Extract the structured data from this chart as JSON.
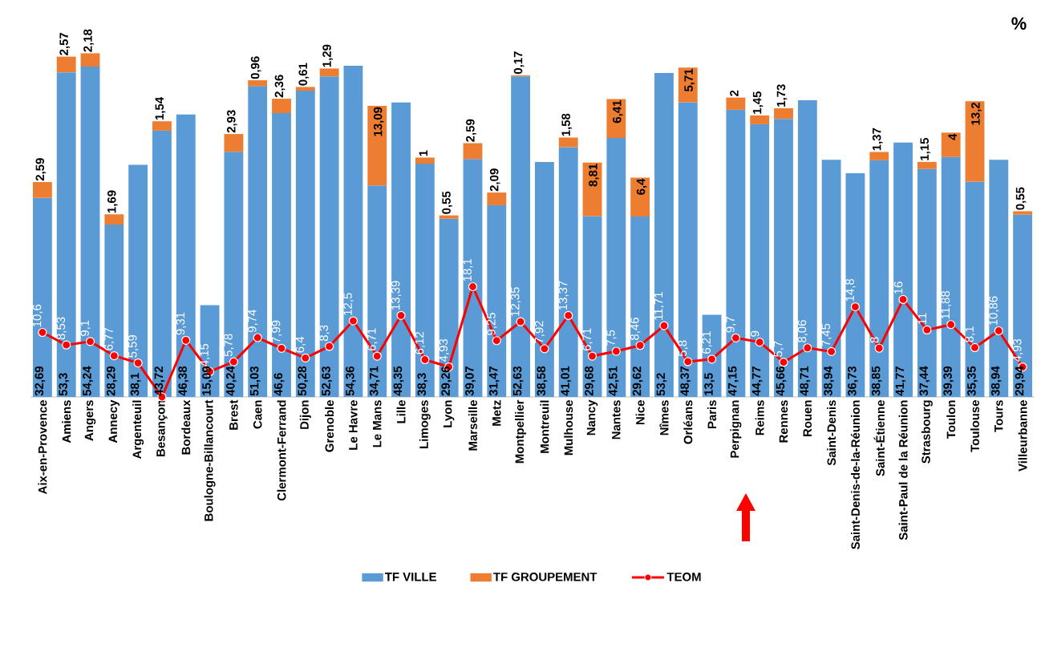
{
  "chart_data": {
    "type": "bar",
    "stacked": true,
    "tick_labels": "x",
    "legend": "bottom",
    "marker": "circle",
    "line_style": "solid",
    "annotations": [
      "%"
    ],
    "categories": [
      "Aix-en-Provence",
      "Amiens",
      "Angers",
      "Annecy",
      "Argenteuil",
      "Besançon",
      "Bordeaux",
      "Boulogne-Billancourt",
      "Brest",
      "Caen",
      "Clermont-Ferrand",
      "Dijon",
      "Grenoble",
      "Le Havre",
      "Le Mans",
      "Lille",
      "Limoges",
      "Lyon",
      "Marseille",
      "Metz",
      "Montpellier",
      "Montreuil",
      "Mulhouse",
      "Nancy",
      "Nantes",
      "Nice",
      "Nîmes",
      "Orléans",
      "Paris",
      "Perpignan",
      "Reims",
      "Rennes",
      "Rouen",
      "Saint-Denis",
      "Saint-Denis-de-la-Réunion",
      "Saint-Étienne",
      "Saint-Paul de la Réunion",
      "Strasbourg",
      "Toulon",
      "Toulouse",
      "Tours",
      "Villeurbanne"
    ],
    "series": [
      {
        "name": "TF VILLE",
        "color": "#5b9bd5",
        "values": [
          32.69,
          53.3,
          54.24,
          28.29,
          38.1,
          43.72,
          46.38,
          15.09,
          40.24,
          51.03,
          46.6,
          50.28,
          52.63,
          54.36,
          34.71,
          48.35,
          38.3,
          29.26,
          39.07,
          31.47,
          52.63,
          38.58,
          41.01,
          29.68,
          42.51,
          29.62,
          53.2,
          48.37,
          13.5,
          47.15,
          44.77,
          45.66,
          48.71,
          38.94,
          36.73,
          38.85,
          41.77,
          37.44,
          39.39,
          35.35,
          38.94,
          29.94
        ],
        "value_labels": [
          "32,69",
          "53,3",
          "54,24",
          "28,29",
          "38,1",
          "43,72",
          "46,38",
          "15,09",
          "40,24",
          "51,03",
          "46,6",
          "50,28",
          "52,63",
          "54,36",
          "34,71",
          "48,35",
          "38,3",
          "29,26",
          "39,07",
          "31,47",
          "52,63",
          "38,58",
          "41,01",
          "29,68",
          "42,51",
          "29,62",
          "53,2",
          "48,37",
          "13,5",
          "47,15",
          "44,77",
          "45,66",
          "48,71",
          "38,94",
          "36,73",
          "38,85",
          "41,77",
          "37,44",
          "39,39",
          "35,35",
          "38,94",
          "29,94"
        ]
      },
      {
        "name": "TF GROUPEMENT",
        "color": "#ed7d31",
        "values": [
          2.59,
          2.57,
          2.18,
          1.69,
          null,
          1.54,
          null,
          null,
          2.93,
          0.96,
          2.36,
          0.61,
          1.29,
          null,
          13.09,
          null,
          1,
          0.55,
          2.59,
          2.09,
          0.17,
          null,
          1.58,
          8.81,
          6.41,
          6.4,
          null,
          5.71,
          null,
          2,
          1.45,
          1.73,
          null,
          null,
          null,
          1.37,
          null,
          1.15,
          4,
          13.2,
          null,
          0.55
        ],
        "value_labels": [
          "2,59",
          "2,57",
          "2,18",
          "1,69",
          null,
          "1,54",
          null,
          null,
          "2,93",
          "0,96",
          "2,36",
          "0,61",
          "1,29",
          null,
          "13,09",
          null,
          "1",
          "0,55",
          "2,59",
          "2,09",
          "0,17",
          null,
          "1,58",
          "8,81",
          "6,41",
          "6,4",
          null,
          "5,71",
          null,
          "2",
          "1,45",
          "1,73",
          null,
          null,
          null,
          "1,37",
          null,
          "1,15",
          "4",
          "13,2",
          null,
          "0,55"
        ]
      },
      {
        "type": "line",
        "name": "TEOM",
        "color": "#ff0000",
        "values": [
          10.6,
          8.53,
          9.1,
          6.77,
          5.59,
          0,
          9.31,
          4.15,
          5.78,
          9.74,
          7.99,
          6.4,
          8.3,
          12.5,
          6.71,
          13.39,
          6.12,
          4.93,
          18.1,
          9.25,
          12.35,
          7.92,
          13.37,
          6.71,
          7.5,
          8.46,
          11.71,
          5.8,
          6.21,
          9.7,
          9,
          5.7,
          8.06,
          7.45,
          14.8,
          8,
          16,
          11,
          11.88,
          8.1,
          10.86,
          4.93
        ],
        "value_labels": [
          "10,6",
          "8,53",
          "9,1",
          "6,77",
          "5,59",
          null,
          "9,31",
          "4,15",
          "5,78",
          "9,74",
          "7,99",
          "6,4",
          "8,3",
          "12,5",
          "6,71",
          "13,39",
          "6,12",
          "4,93",
          "18,1",
          "9,25",
          "12,35",
          "7,92",
          "13,37",
          "6,71",
          "7,5",
          "8,46",
          "11,71",
          "5,8",
          "6,21",
          "9,7",
          "9",
          "5,7",
          "8,06",
          "7,45",
          "14,8",
          "8",
          "16",
          "11",
          "11,88",
          "8,1",
          "10,86",
          "4,93"
        ]
      }
    ]
  }
}
